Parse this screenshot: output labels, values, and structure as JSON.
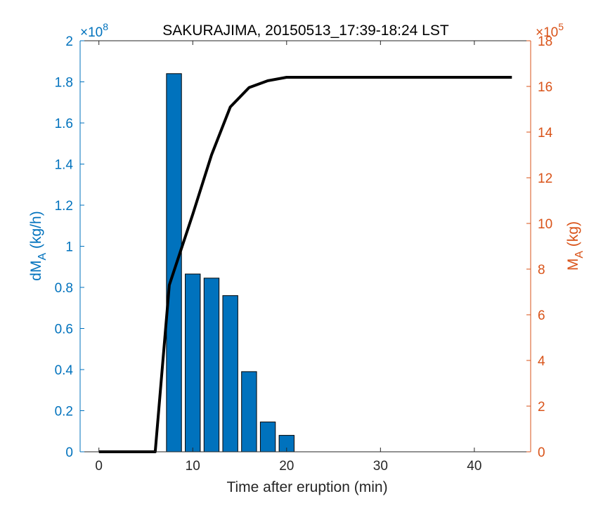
{
  "chart_data": {
    "type": "bar",
    "title": "SAKURAJIMA, 20150513_17:39-18:24 LST",
    "xlabel": "Time after eruption (min)",
    "xlim": [
      -2,
      46
    ],
    "x_ticks": [
      0,
      10,
      20,
      30,
      40
    ],
    "left_axis": {
      "label_main": "dM",
      "label_sub": "A",
      "label_unit": " (kg/h)",
      "exponent_label": "×10",
      "exponent": "8",
      "ylim": [
        0,
        2
      ],
      "ticks": [
        0,
        0.2,
        0.4,
        0.6,
        0.8,
        1,
        1.2,
        1.4,
        1.6,
        1.8,
        2
      ],
      "tick_labels": [
        "0",
        "0.2",
        "0.4",
        "0.6",
        "0.8",
        "1",
        "1.2",
        "1.4",
        "1.6",
        "1.8",
        "2"
      ],
      "color": "#0072BD"
    },
    "right_axis": {
      "label_main": "M",
      "label_sub": "A",
      "label_unit": " (kg)",
      "exponent_label": "×10",
      "exponent": "5",
      "ylim": [
        0,
        18
      ],
      "ticks": [
        0,
        2,
        4,
        6,
        8,
        10,
        12,
        14,
        16,
        18
      ],
      "tick_labels": [
        "0",
        "2",
        "4",
        "6",
        "8",
        "10",
        "12",
        "14",
        "16",
        "18"
      ],
      "color": "#D95319"
    },
    "bars": {
      "name": "dMA",
      "axis": "left",
      "width": 1.6,
      "color": "#0072BD",
      "x": [
        8,
        10,
        12,
        14,
        16,
        18,
        20
      ],
      "values": [
        1.84,
        0.865,
        0.845,
        0.76,
        0.39,
        0.145,
        0.08
      ]
    },
    "line": {
      "name": "MA",
      "axis": "right",
      "color": "#000000",
      "x": [
        0,
        6,
        7.5,
        10,
        12,
        14,
        16,
        18,
        20,
        22,
        44
      ],
      "values": [
        0,
        0,
        7.3,
        10.4,
        13,
        15.1,
        15.95,
        16.25,
        16.4,
        16.4,
        16.4
      ]
    },
    "grid": false,
    "legend": "none"
  }
}
